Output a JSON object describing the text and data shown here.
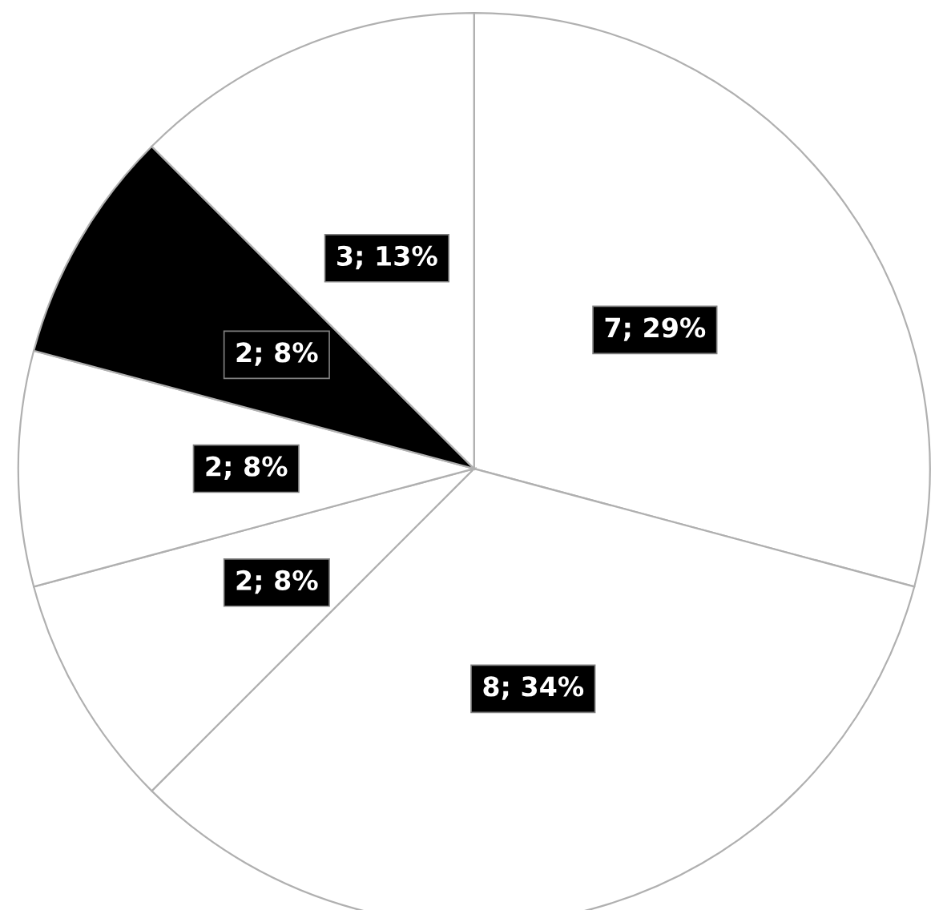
{
  "chart_data": {
    "type": "pie",
    "categories": [
      null,
      null,
      null,
      null,
      null,
      null
    ],
    "values": [
      7,
      8,
      2,
      2,
      2,
      3
    ],
    "colors": [
      "#ffffff",
      "#ffffff",
      "#ffffff",
      "#ffffff",
      "#000000",
      "#ffffff"
    ],
    "value_labels": [
      "7; 29%",
      "8; 34%",
      "2; 8%",
      "2; 8%",
      "2; 8%",
      "3; 13%"
    ],
    "legend": false
  }
}
